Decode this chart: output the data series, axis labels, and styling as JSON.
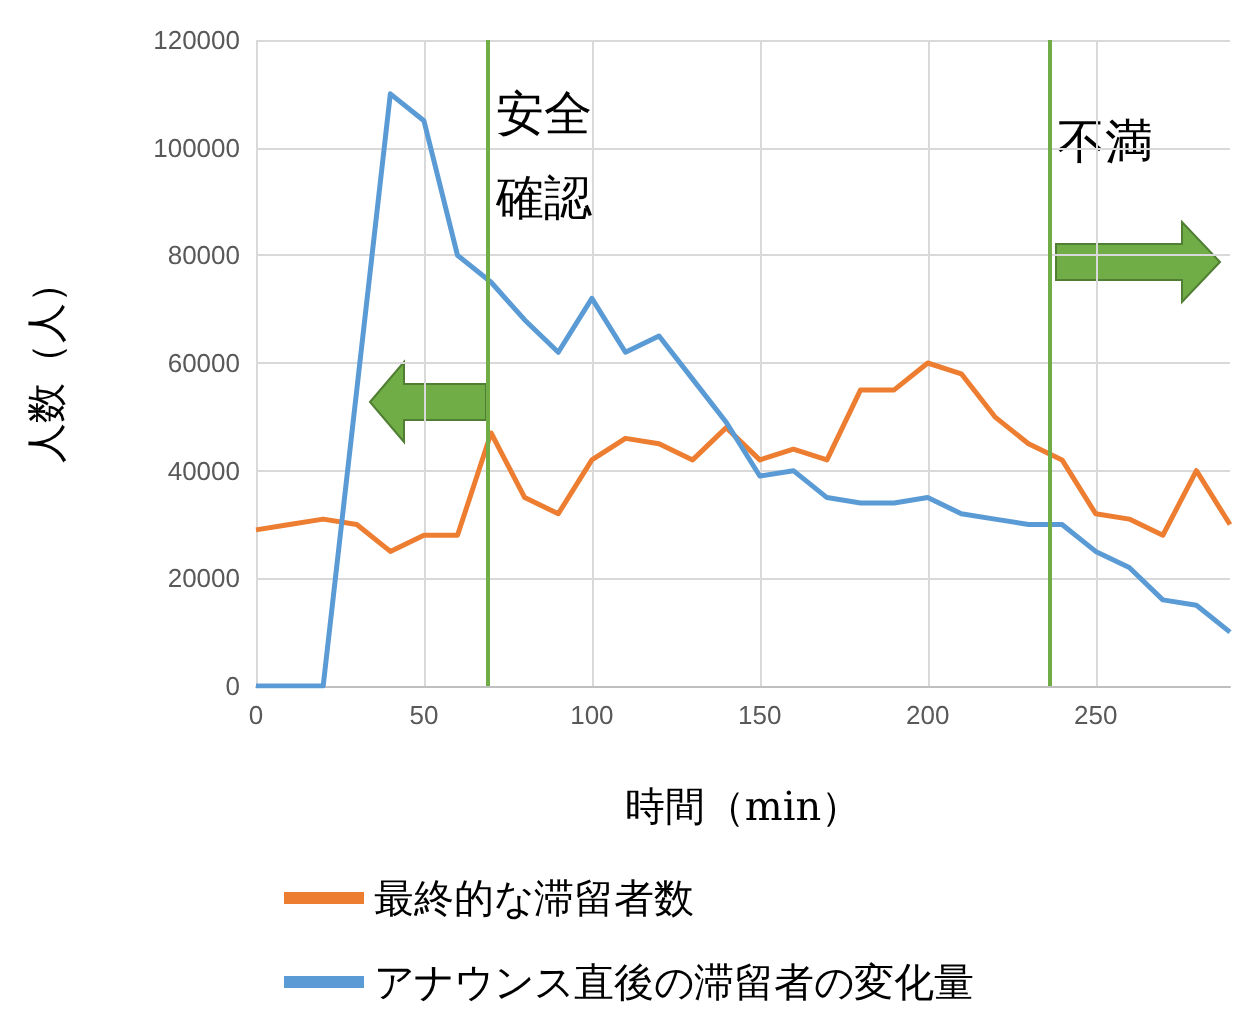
{
  "chart_data": {
    "type": "line",
    "xlabel": "時間（min）",
    "ylabel": "人数（人）",
    "x": [
      0,
      10,
      20,
      30,
      40,
      50,
      60,
      70,
      80,
      90,
      100,
      110,
      120,
      130,
      140,
      150,
      160,
      170,
      180,
      190,
      200,
      210,
      220,
      230,
      240,
      250,
      260,
      270,
      280,
      290
    ],
    "series": [
      {
        "name": "最終的な滞留者数",
        "color": "#ed7d31",
        "values": [
          29000,
          30000,
          31000,
          30000,
          25000,
          28000,
          28000,
          47000,
          35000,
          32000,
          42000,
          46000,
          45000,
          42000,
          48000,
          42000,
          44000,
          42000,
          55000,
          55000,
          60000,
          58000,
          50000,
          45000,
          42000,
          32000,
          31000,
          28000,
          40000,
          30000
        ]
      },
      {
        "name": "アナウンス直後の滞留者の変化量",
        "color": "#5b9bd5",
        "values": [
          0,
          0,
          0,
          55000,
          110000,
          105000,
          80000,
          75000,
          68000,
          62000,
          72000,
          62000,
          65000,
          57000,
          49000,
          39000,
          40000,
          35000,
          34000,
          34000,
          35000,
          32000,
          31000,
          30000,
          30000,
          25000,
          22000,
          16000,
          15000,
          10000
        ]
      }
    ],
    "xlim": [
      0,
      290
    ],
    "xticks": [
      0,
      50,
      100,
      150,
      200,
      250
    ],
    "ylim": [
      0,
      120000
    ],
    "yticks": [
      0,
      20000,
      40000,
      60000,
      80000,
      100000,
      120000
    ],
    "ref_lines": [
      {
        "axis": "x",
        "value": 69,
        "label": "安全確認",
        "color": "#70ad47"
      },
      {
        "axis": "x",
        "value": 236,
        "label": "不満",
        "color": "#70ad47"
      }
    ],
    "grid": true,
    "legend": "bottom",
    "marker": "none",
    "line_style": "solid"
  }
}
